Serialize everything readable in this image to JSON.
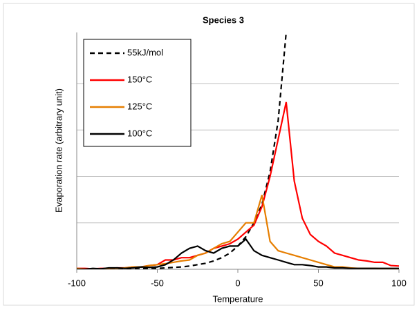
{
  "chart_data": {
    "type": "line",
    "title": "Species 3",
    "x_label": "Temperature",
    "y_label": "Evaporation rate (arbitrary unit)",
    "x": [
      -100,
      -95,
      -90,
      -85,
      -80,
      -75,
      -70,
      -65,
      -60,
      -55,
      -50,
      -45,
      -40,
      -35,
      -30,
      -25,
      -20,
      -15,
      -10,
      -5,
      0,
      5,
      10,
      15,
      20,
      25,
      30,
      35,
      40,
      45,
      50,
      55,
      60,
      65,
      70,
      75,
      80,
      85,
      90,
      95,
      100
    ],
    "xlim": [
      -100,
      100
    ],
    "xticks": [
      -100,
      -50,
      0,
      50,
      100
    ],
    "ylim": [
      0,
      5.1
    ],
    "ygrid": [
      1,
      2,
      3,
      4
    ],
    "legend": "top-left",
    "series": [
      {
        "name": "55kJ/mol",
        "color": "#000000",
        "dash": true,
        "values": [
          0,
          0,
          0,
          0,
          0,
          0,
          0.01,
          0.01,
          0.01,
          0.02,
          0.02,
          0.03,
          0.04,
          0.05,
          0.07,
          0.1,
          0.13,
          0.18,
          0.25,
          0.35,
          0.5,
          0.7,
          1.0,
          1.4,
          2.1,
          3.2,
          5.1,
          null,
          null,
          null,
          null,
          null,
          null,
          null,
          null,
          null,
          null,
          null,
          null,
          null,
          null
        ]
      },
      {
        "name": "150°C",
        "color": "#ff0000",
        "values": [
          0.02,
          0.02,
          0.01,
          0.02,
          0.02,
          0.03,
          0.03,
          0.05,
          0.05,
          0.08,
          0.1,
          0.2,
          0.2,
          0.25,
          0.25,
          0.3,
          0.35,
          0.45,
          0.5,
          0.55,
          0.65,
          0.8,
          0.95,
          1.35,
          2.0,
          2.8,
          3.6,
          1.9,
          1.1,
          0.75,
          0.6,
          0.5,
          0.35,
          0.3,
          0.25,
          0.2,
          0.18,
          0.15,
          0.15,
          0.08,
          0.07
        ]
      },
      {
        "name": "125°C",
        "color": "#e67e00",
        "values": [
          0.02,
          0,
          0.01,
          0,
          0.02,
          0.02,
          0.03,
          0.05,
          0.05,
          0.08,
          0.1,
          0.12,
          0.15,
          0.18,
          0.2,
          0.3,
          0.35,
          0.45,
          0.55,
          0.6,
          0.8,
          1.0,
          1.0,
          1.6,
          0.6,
          0.4,
          0.35,
          0.3,
          0.25,
          0.2,
          0.15,
          0.1,
          0.05,
          0.05,
          0.03,
          0.02,
          0.02,
          0.02,
          0.01,
          0.01,
          0
        ]
      },
      {
        "name": "100°C",
        "color": "#000000",
        "values": [
          0,
          0,
          0.02,
          0.01,
          0.03,
          0.03,
          0.02,
          0.03,
          0.05,
          0.04,
          0.05,
          0.1,
          0.2,
          0.35,
          0.45,
          0.5,
          0.4,
          0.35,
          0.45,
          0.5,
          0.5,
          0.65,
          0.4,
          0.3,
          0.25,
          0.2,
          0.15,
          0.1,
          0.1,
          0.08,
          0.05,
          0.05,
          0.03,
          0.03,
          0.02,
          0.02,
          0.02,
          0.02,
          0.02,
          0.02,
          0.02
        ]
      }
    ]
  }
}
